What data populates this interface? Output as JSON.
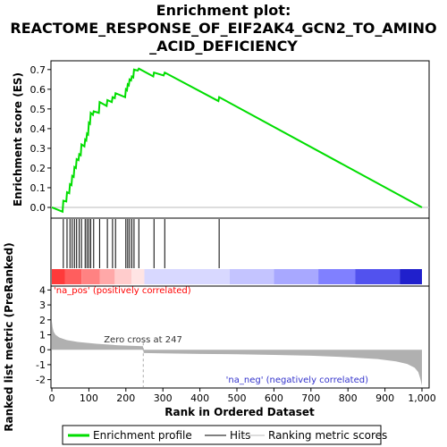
{
  "chart_data": [
    {
      "type": "line",
      "title_lines": [
        "Enrichment plot:",
        "REACTOME_RESPONSE_OF_EIF2AK4_GCN2_TO_AMINO",
        "_ACID_DEFICIENCY"
      ],
      "ylabel": "Enrichment score (ES)",
      "xlim": [
        0,
        1000
      ],
      "ylim": [
        -0.05,
        0.74
      ],
      "yticks": [
        "0.0",
        "0.1",
        "0.2",
        "0.3",
        "0.4",
        "0.5",
        "0.6",
        "0.7"
      ],
      "grid": false,
      "series": [
        {
          "name": "Enrichment profile",
          "color": "#00dd00",
          "x": [
            0,
            29,
            31,
            39,
            41,
            47,
            49,
            53,
            55,
            59,
            61,
            65,
            67,
            72,
            74,
            78,
            80,
            88,
            90,
            93,
            95,
            98,
            100,
            103,
            105,
            111,
            113,
            127,
            129,
            148,
            150,
            162,
            164,
            170,
            172,
            198,
            200,
            203,
            205,
            208,
            210,
            214,
            216,
            220,
            222,
            232,
            235,
            274,
            276,
            302,
            305,
            450,
            452,
            1000
          ],
          "y": [
            0.0,
            -0.022,
            0.034,
            0.03,
            0.077,
            0.072,
            0.118,
            0.113,
            0.16,
            0.155,
            0.205,
            0.2,
            0.245,
            0.24,
            0.27,
            0.265,
            0.32,
            0.31,
            0.345,
            0.34,
            0.375,
            0.37,
            0.43,
            0.425,
            0.48,
            0.47,
            0.488,
            0.48,
            0.535,
            0.515,
            0.545,
            0.535,
            0.56,
            0.555,
            0.58,
            0.56,
            0.6,
            0.595,
            0.625,
            0.62,
            0.65,
            0.645,
            0.665,
            0.66,
            0.7,
            0.695,
            0.705,
            0.665,
            0.685,
            0.67,
            0.685,
            0.54,
            0.56,
            0.0
          ]
        }
      ]
    },
    {
      "type": "table",
      "legend_label": "Hits",
      "hit_color": "#000000",
      "hits": [
        31,
        41,
        49,
        55,
        61,
        67,
        74,
        80,
        90,
        95,
        100,
        105,
        113,
        129,
        150,
        164,
        172,
        200,
        205,
        210,
        216,
        222,
        235,
        276,
        305,
        452
      ]
    },
    {
      "type": "heatmap",
      "colors": [
        "#ff3a3a",
        "#ff5e5e",
        "#ff8282",
        "#ffa8a8",
        "#ffcccc",
        "#ffe4e4",
        "#d8d8ff",
        "#c4c4ff",
        "#a8a8ff",
        "#8080ff",
        "#5252ee",
        "#2020cc"
      ],
      "breaks": [
        0,
        35,
        80,
        130,
        170,
        215,
        250,
        480,
        600,
        720,
        820,
        940,
        1000
      ]
    },
    {
      "type": "area",
      "xlabel": "Rank in Ordered Dataset",
      "ylabel": "Ranked list metric (PreRanked)",
      "xlim": [
        0,
        1000
      ],
      "ylim": [
        -2.5,
        4.2
      ],
      "yticks": [
        "-2",
        "-1",
        "0",
        "1",
        "2",
        "3",
        "4"
      ],
      "xticks": [
        "0",
        "100",
        "200",
        "300",
        "400",
        "500",
        "600",
        "700",
        "800",
        "900",
        "1,000"
      ],
      "fill_color": "#b0b0b0",
      "zero_cross_rank": 247,
      "zero_cross_text": "Zero cross at 247",
      "pos_label": "'na_pos' (positively correlated)",
      "pos_color": "#ff0000",
      "neg_label": "'na_neg' (negatively correlated)",
      "neg_color": "#3333cc",
      "x": [
        0,
        2,
        5,
        10,
        20,
        40,
        70,
        120,
        180,
        246,
        248,
        300,
        400,
        500,
        600,
        700,
        800,
        880,
        930,
        960,
        980,
        990,
        995,
        1000
      ],
      "y": [
        1.9,
        1.5,
        1.2,
        1.0,
        0.82,
        0.65,
        0.52,
        0.4,
        0.3,
        0.24,
        -0.22,
        -0.24,
        -0.28,
        -0.3,
        -0.35,
        -0.4,
        -0.5,
        -0.62,
        -0.78,
        -0.95,
        -1.2,
        -1.5,
        -1.9,
        -2.4
      ]
    }
  ],
  "legend": {
    "entries": [
      {
        "label": "Enrichment profile",
        "color": "#00dd00",
        "style": "thick-line"
      },
      {
        "label": "Hits",
        "color": "#000000",
        "style": "thin-line"
      },
      {
        "label": "Ranking metric scores",
        "color": "#bbbbbb",
        "style": "thin-line"
      }
    ]
  }
}
